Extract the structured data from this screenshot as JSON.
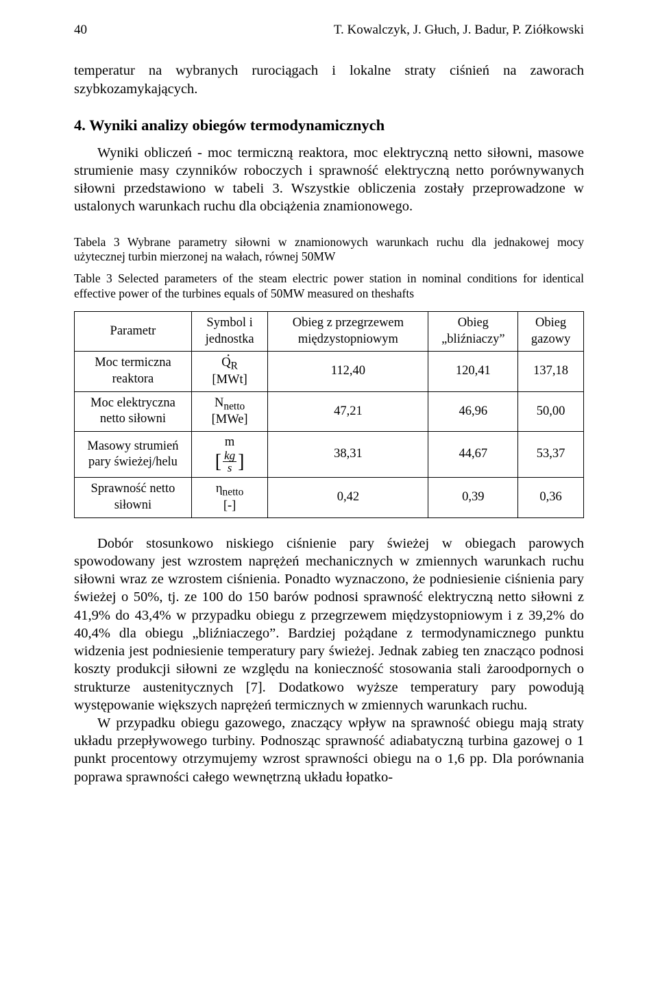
{
  "running_head": {
    "page_number": "40",
    "authors": "T. Kowalczyk, J. Głuch, J. Badur, P. Ziółkowski"
  },
  "intro_fragment": "temperatur na wybranych rurociągach i lokalne straty ciśnień na zaworach szybkozamykających.",
  "section": {
    "number": "4.",
    "title": "Wyniki analizy obiegów termodynamicznych"
  },
  "section_lead": "Wyniki obliczeń - moc termiczną reaktora, moc elektryczną netto siłowni, masowe strumienie masy czynników roboczych i sprawność elektryczną netto porównywanych siłowni przedstawiono w tabeli 3. Wszystkie obliczenia zostały przeprowadzone w ustalonych warunkach ruchu dla obciążenia znamionowego.",
  "caption_pl": "Tabela 3 Wybrane parametry siłowni w znamionowych warunkach ruchu dla jednakowej mocy użytecznej turbin mierzonej na wałach, równej 50MW",
  "caption_en": "Table 3 Selected parameters of the steam electric power station in nominal conditions for identical effective power of the turbines equals of 50MW measured on theshafts",
  "table": {
    "type": "table",
    "columns": [
      "Parametr",
      "Symbol i jednostka",
      "Obieg z przegrzewem międzystopniowym",
      "Obieg „bliźniaczy”",
      "Obieg gazowy"
    ],
    "rows": [
      {
        "param": "Moc termiczna reaktora",
        "symbol_html": "<span class=\"qdot\">Q</span><sub>R</sub><br>[MWt]",
        "v1": "112,40",
        "v2": "120,41",
        "v3": "137,18"
      },
      {
        "param": "Moc elektryczna netto siłowni",
        "symbol_html": "N<sub>netto</sub><br>[MWe]",
        "v1": "47,21",
        "v2": "46,96",
        "v3": "50,00"
      },
      {
        "param": "Masowy strumień pary świeżej/helu",
        "symbol_html": "m<br><span class=\"brackets\"><span class=\"frac\"><span class=\"num\"><i>kg</i></span><span class=\"den\"><i>s</i></span></span></span>",
        "v1": "38,31",
        "v2": "44,67",
        "v3": "53,37"
      },
      {
        "param": "Sprawność netto siłowni",
        "symbol_html": "η<sub>netto</sub><br>[-]",
        "v1": "0,42",
        "v2": "0,39",
        "v3": "0,36"
      }
    ],
    "border_color": "#000000",
    "background_color": "#ffffff",
    "font_size_pt": 10,
    "column_alignment": [
      "center",
      "center",
      "center",
      "center",
      "center"
    ]
  },
  "body1": "Dobór stosunkowo niskiego ciśnienie pary świeżej w obiegach parowych spowodowany jest wzrostem naprężeń mechanicznych w zmiennych warunkach ruchu siłowni wraz ze wzrostem ciśnienia. Ponadto wyznaczono, że podniesienie ciśnienia pary świeżej o 50%, tj. ze 100 do 150 barów podnosi sprawność elektryczną netto siłowni z 41,9% do 43,4% w przypadku obiegu z przegrzewem międzystopniowym i z 39,2% do 40,4% dla obiegu „bliźniaczego”. Bardziej pożądane z termodynamicznego punktu widzenia jest podniesienie temperatury pary świeżej. Jednak zabieg ten znacząco podnosi koszty produkcji siłowni ze względu na konieczność stosowania stali żaroodpornych o strukturze austenitycznych [7]. Dodatkowo wyższe temperatury pary powodują występowanie większych naprężeń termicznych w zmiennych warunkach ruchu.",
  "body2": "W przypadku obiegu gazowego, znaczący wpływ na sprawność obiegu mają straty układu przepływowego turbiny. Podnosząc sprawność adiabatyczną turbina gazowej o 1 punkt procentowy otrzymujemy wzrost sprawności obiegu na o 1,6 pp. Dla porównania poprawa sprawności całego wewnętrzną układu łopatko-"
}
